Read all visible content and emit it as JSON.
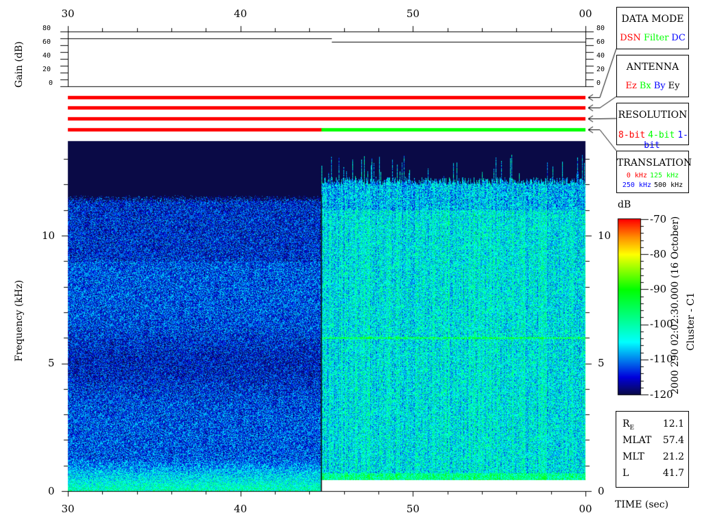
{
  "chart_data": {
    "type": "heatmap",
    "xlabel": "TIME (sec)",
    "x_ticks": [
      "30",
      "40",
      "50",
      "00"
    ],
    "xlim": [
      30,
      60
    ],
    "ylabel": "Frequency (kHz)",
    "y_ticks": [
      "0",
      "5",
      "10"
    ],
    "ylim": [
      0,
      13.7
    ],
    "gain": {
      "ylabel": "Gain (dB)",
      "y_ticks": [
        "0",
        "20",
        "40",
        "60",
        "80"
      ],
      "ylim": [
        0,
        80
      ],
      "segments": [
        {
          "x": [
            30,
            45.3
          ],
          "value": 70
        },
        {
          "x": [
            45.3,
            60
          ],
          "value": 65
        }
      ]
    },
    "mode_bars": [
      {
        "name": "DATA MODE",
        "segments": [
          {
            "x": [
              30,
              60
            ],
            "color": "#ff0000"
          }
        ]
      },
      {
        "name": "ANTENNA",
        "segments": [
          {
            "x": [
              30,
              60
            ],
            "color": "#ff0000"
          }
        ]
      },
      {
        "name": "RESOLUTION",
        "segments": [
          {
            "x": [
              30,
              60
            ],
            "color": "#ff0000"
          }
        ]
      },
      {
        "name": "TRANSLATION",
        "segments": [
          {
            "x": [
              30,
              44.7
            ],
            "color": "#ff0000"
          },
          {
            "x": [
              44.7,
              60
            ],
            "color": "#00ff00"
          }
        ]
      }
    ],
    "colorbar": {
      "label": "dB",
      "range": [
        -120,
        -70
      ],
      "ticks": [
        "-70",
        "-80",
        "-90",
        "-100",
        "-110",
        "-120"
      ],
      "colormap": "jet"
    },
    "regions": [
      {
        "x": [
          30,
          44.7
        ],
        "background_dB": -112,
        "cutoff_kHz": 11.3
      },
      {
        "x": [
          44.7,
          60
        ],
        "background_dB": -104,
        "cutoff_kHz": 12.0,
        "low_cutoff_kHz": 0.45,
        "line_kHz": 6.0
      }
    ]
  },
  "legend": {
    "data_mode": {
      "title": "DATA MODE",
      "items": [
        {
          "label": "DSN",
          "color": "#ff0000"
        },
        {
          "label": "Filter",
          "color": "#00ff00"
        },
        {
          "label": "DC",
          "color": "#0000ff"
        }
      ]
    },
    "antenna": {
      "title": "ANTENNA",
      "items": [
        {
          "label": "Ez",
          "color": "#ff0000"
        },
        {
          "label": "Bx",
          "color": "#00ff00"
        },
        {
          "label": "By",
          "color": "#0000ff"
        },
        {
          "label": "Ey",
          "color": "#000000"
        }
      ]
    },
    "resolution": {
      "title": "RESOLUTION",
      "items": [
        {
          "label": "8-bit",
          "color": "#ff0000"
        },
        {
          "label": "4-bit",
          "color": "#00ff00"
        },
        {
          "label": "1-bit",
          "color": "#0000ff"
        }
      ]
    },
    "translation": {
      "title": "TRANSLATION",
      "items": [
        {
          "label": "0 kHz",
          "color": "#ff0000"
        },
        {
          "label": "125 kHz",
          "color": "#00ff00"
        },
        {
          "label": "250 kHz",
          "color": "#0000ff"
        },
        {
          "label": "500 kHz",
          "color": "#000000"
        }
      ]
    }
  },
  "side_title": "2000 290 02:02:30.000 (16 October)",
  "spacecraft": "Cluster - C1",
  "info": [
    {
      "label": "R",
      "sub": "E",
      "value": "12.1"
    },
    {
      "label": "MLAT",
      "value": "57.4"
    },
    {
      "label": "MLT",
      "value": "21.2"
    },
    {
      "label": "L",
      "value": "41.7"
    }
  ]
}
